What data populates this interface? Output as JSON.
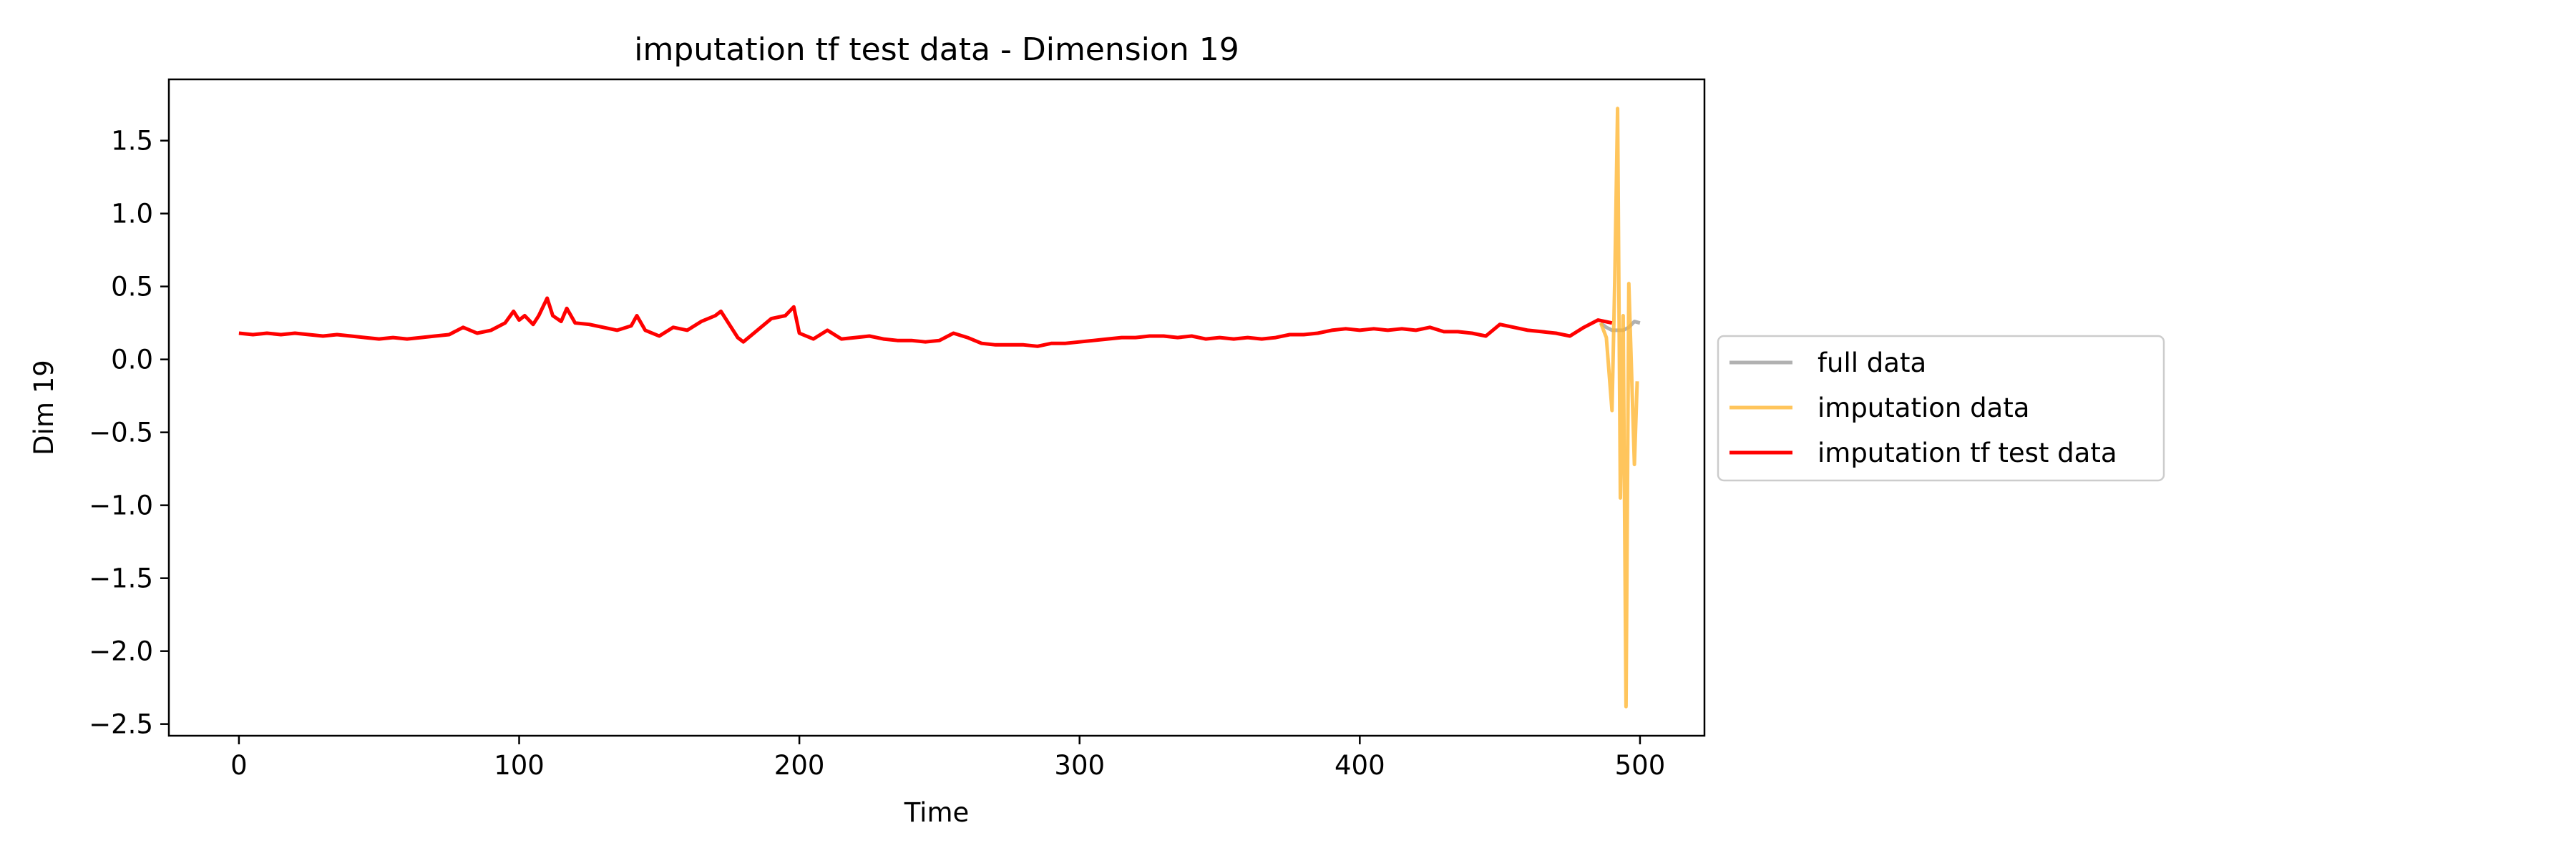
{
  "chart_data": {
    "type": "line",
    "title": "imputation tf test data - Dimension 19",
    "xlabel": "Time",
    "ylabel": "Dim 19",
    "xlim": [
      -25,
      523
    ],
    "ylim": [
      -2.58,
      1.92
    ],
    "xticks": [
      0,
      100,
      200,
      300,
      400,
      500
    ],
    "xtick_labels": [
      "0",
      "100",
      "200",
      "300",
      "400",
      "500"
    ],
    "yticks": [
      1.5,
      1.0,
      0.5,
      0.0,
      -0.5,
      -1.0,
      -1.5,
      -2.0,
      -2.5
    ],
    "ytick_labels": [
      "1.5",
      "1.0",
      "0.5",
      "0.0",
      "−0.5",
      "−1.0",
      "−1.5",
      "−2.0",
      "−2.5"
    ],
    "grid": false,
    "legend_position": "outside-right",
    "series": [
      {
        "name": "full data",
        "color": "#a9a9a9",
        "opacity": 0.9,
        "x": [
          486,
          488,
          490,
          492,
          494,
          496,
          498,
          500
        ],
        "y": [
          0.25,
          0.22,
          0.2,
          0.2,
          0.2,
          0.22,
          0.26,
          0.25
        ]
      },
      {
        "name": "imputation data",
        "color": "#ffb733",
        "opacity": 0.8,
        "x": [
          486,
          488,
          490,
          491,
          492,
          493,
          494,
          495,
          496,
          497,
          498,
          499
        ],
        "y": [
          0.25,
          0.15,
          -0.35,
          0.55,
          1.72,
          -0.95,
          0.3,
          -2.38,
          0.52,
          -0.1,
          -0.72,
          -0.15
        ]
      },
      {
        "name": "imputation tf test data",
        "color": "#ff0000",
        "opacity": 1,
        "x": [
          0,
          5,
          10,
          15,
          20,
          25,
          30,
          35,
          40,
          45,
          50,
          55,
          60,
          65,
          70,
          75,
          80,
          85,
          90,
          95,
          98,
          100,
          102,
          105,
          107,
          110,
          112,
          115,
          117,
          120,
          125,
          130,
          135,
          140,
          142,
          145,
          150,
          155,
          160,
          165,
          170,
          172,
          175,
          178,
          180,
          185,
          190,
          195,
          198,
          200,
          205,
          210,
          215,
          220,
          225,
          230,
          235,
          240,
          245,
          250,
          255,
          260,
          265,
          270,
          275,
          280,
          285,
          290,
          295,
          300,
          305,
          310,
          315,
          320,
          325,
          330,
          335,
          340,
          345,
          350,
          355,
          360,
          365,
          370,
          375,
          380,
          385,
          390,
          395,
          400,
          405,
          410,
          415,
          420,
          425,
          430,
          435,
          440,
          445,
          450,
          455,
          460,
          465,
          470,
          475,
          480,
          485,
          490
        ],
        "y": [
          0.18,
          0.17,
          0.18,
          0.17,
          0.18,
          0.17,
          0.16,
          0.17,
          0.16,
          0.15,
          0.14,
          0.15,
          0.14,
          0.15,
          0.16,
          0.17,
          0.22,
          0.18,
          0.2,
          0.25,
          0.33,
          0.27,
          0.3,
          0.24,
          0.3,
          0.42,
          0.3,
          0.26,
          0.35,
          0.25,
          0.24,
          0.22,
          0.2,
          0.23,
          0.3,
          0.2,
          0.16,
          0.22,
          0.2,
          0.26,
          0.3,
          0.33,
          0.24,
          0.15,
          0.12,
          0.2,
          0.28,
          0.3,
          0.36,
          0.18,
          0.14,
          0.2,
          0.14,
          0.15,
          0.16,
          0.14,
          0.13,
          0.13,
          0.12,
          0.13,
          0.18,
          0.15,
          0.11,
          0.1,
          0.1,
          0.1,
          0.09,
          0.11,
          0.11,
          0.12,
          0.13,
          0.14,
          0.15,
          0.15,
          0.16,
          0.16,
          0.15,
          0.16,
          0.14,
          0.15,
          0.14,
          0.15,
          0.14,
          0.15,
          0.17,
          0.17,
          0.18,
          0.2,
          0.21,
          0.2,
          0.21,
          0.2,
          0.21,
          0.2,
          0.22,
          0.19,
          0.19,
          0.18,
          0.16,
          0.24,
          0.22,
          0.2,
          0.19,
          0.18,
          0.16,
          0.22,
          0.27,
          0.25
        ]
      }
    ]
  }
}
